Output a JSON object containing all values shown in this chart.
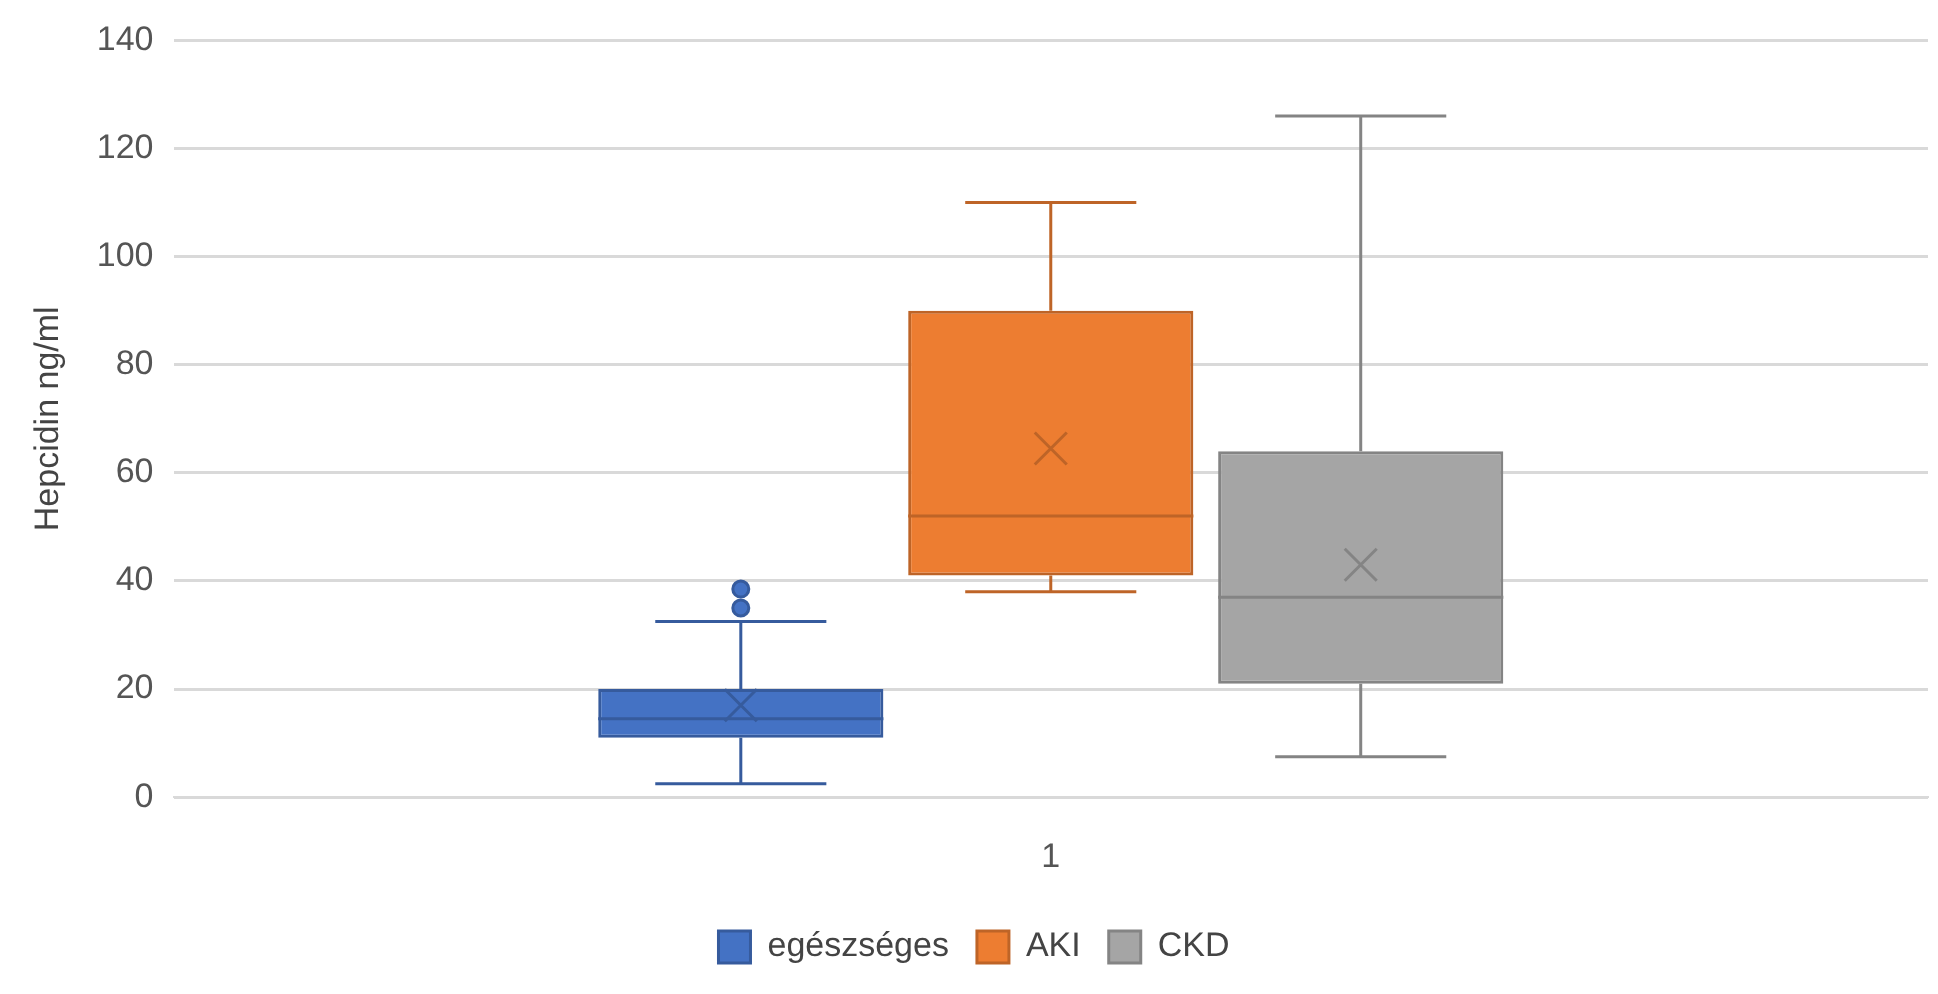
{
  "chart_data": {
    "type": "box",
    "ylabel": "Hepcidin ng/ml",
    "categories": [
      "1"
    ],
    "ylim": [
      0,
      140
    ],
    "yticks": [
      0,
      20,
      40,
      60,
      80,
      100,
      120,
      140
    ],
    "grid": "y",
    "legend": "bottom",
    "series": [
      {
        "name": "egészséges",
        "color": "#4472c4",
        "boxes": [
          {
            "low": 2.5,
            "q1": 11,
            "median": 14.5,
            "q3": 20,
            "high": 32.5,
            "mean": 17,
            "outliers": [
              35,
              38.5
            ]
          }
        ]
      },
      {
        "name": "AKI",
        "color": "#ed7d31",
        "boxes": [
          {
            "low": 38,
            "q1": 41,
            "median": 52,
            "q3": 90,
            "high": 110,
            "mean": 64.5
          }
        ]
      },
      {
        "name": "CKD",
        "color": "#a5a5a5",
        "boxes": [
          {
            "low": 7.5,
            "q1": 21,
            "median": 37,
            "q3": 64,
            "high": 126,
            "mean": 43
          }
        ]
      }
    ]
  }
}
